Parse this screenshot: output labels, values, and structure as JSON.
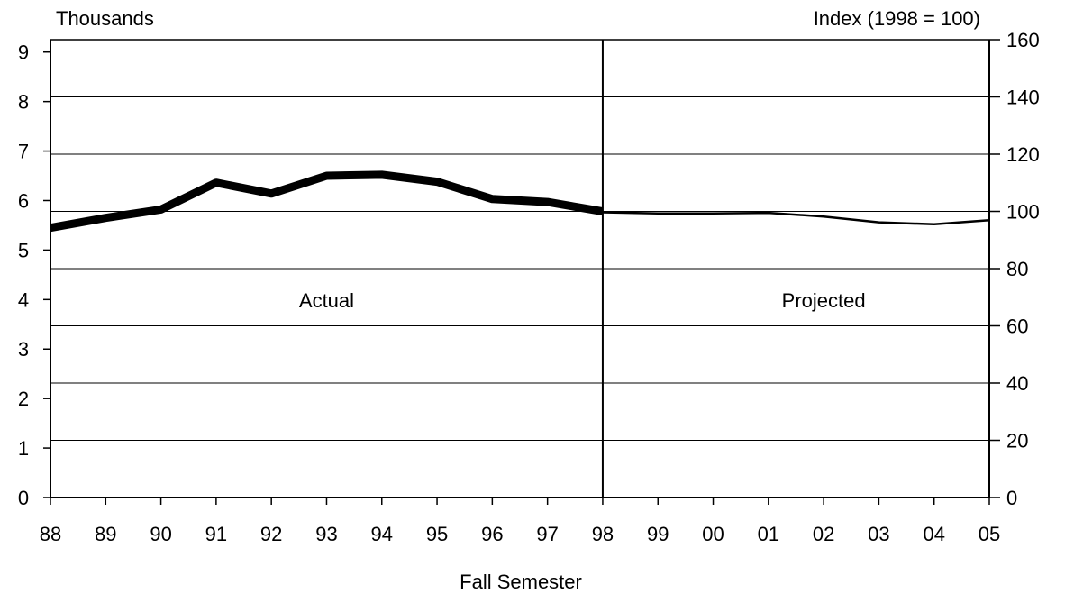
{
  "chart_data": {
    "type": "line",
    "xlabel": "Fall Semester",
    "ylabel_left": "Thousands",
    "ylabel_right": "Index (1998 = 100)",
    "x_tick_labels": [
      "88",
      "89",
      "90",
      "91",
      "92",
      "93",
      "94",
      "95",
      "96",
      "97",
      "98",
      "99",
      "00",
      "01",
      "02",
      "03",
      "04",
      "05"
    ],
    "y_left_ticks": [
      0,
      1,
      2,
      3,
      4,
      5,
      6,
      7,
      8,
      9
    ],
    "y_right_ticks": [
      0,
      20,
      40,
      60,
      80,
      100,
      120,
      140,
      160
    ],
    "ylim_left": [
      0,
      9.25
    ],
    "ylim_right": [
      0,
      160
    ],
    "grid": "horizontal",
    "annotations": [
      {
        "text": "Actual",
        "x": 1993
      },
      {
        "text": "Projected",
        "x": 2002
      }
    ],
    "divider_x": 1998,
    "series": [
      {
        "style": "thick",
        "x": [
          1988,
          1989,
          1990,
          1991,
          1992,
          1993,
          1994,
          1995,
          1996,
          1997,
          1998
        ],
        "values": [
          5.45,
          5.65,
          5.82,
          6.36,
          6.14,
          6.5,
          6.52,
          6.38,
          6.03,
          5.97,
          5.78
        ]
      },
      {
        "style": "thin",
        "x": [
          1998,
          1999,
          2000,
          2001,
          2002,
          2003,
          2004,
          2005
        ],
        "values": [
          99.7,
          99.3,
          99.3,
          99.5,
          98.2,
          96.2,
          95.5,
          96.9
        ]
      }
    ]
  }
}
